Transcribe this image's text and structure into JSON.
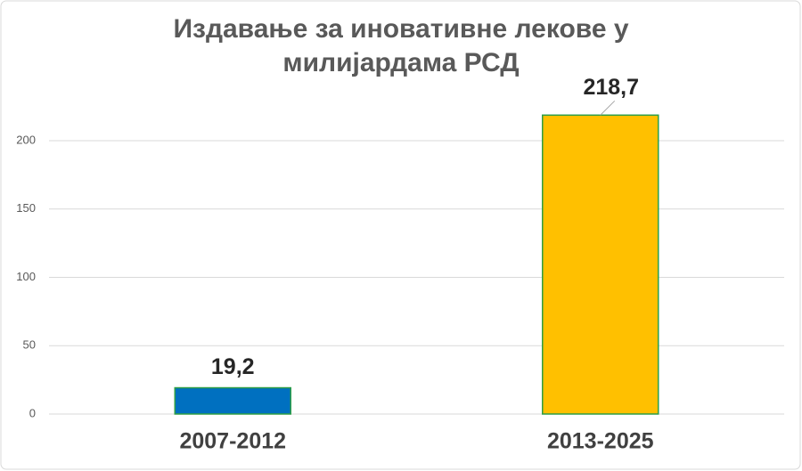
{
  "chart_data": {
    "type": "bar",
    "title": "Издавање за иновативне лекове у милијардама РСД",
    "categories": [
      "2007-2012",
      "2013-2025"
    ],
    "values": [
      19.2,
      218.7
    ],
    "value_labels": [
      "19,2",
      "218,7"
    ],
    "colors": [
      "#0070c0",
      "#ffc000"
    ],
    "edge_color": "#2e9e46",
    "ylim": [
      0,
      220
    ],
    "yticks": [
      0,
      50,
      100,
      150,
      200
    ],
    "grid": true
  }
}
